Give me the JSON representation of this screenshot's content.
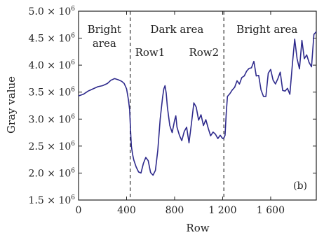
{
  "chart_data": {
    "type": "line",
    "xlabel": "Row",
    "ylabel": "Gray value",
    "panel_tag": "(b)",
    "xlim": [
      0,
      1980
    ],
    "ylim": [
      1500000,
      5000000
    ],
    "x_ticks": [
      {
        "value": 0,
        "label": "0"
      },
      {
        "value": 400,
        "label": "400"
      },
      {
        "value": 800,
        "label": "800"
      },
      {
        "value": 1200,
        "label": "1 200"
      },
      {
        "value": 1600,
        "label": "1 600"
      }
    ],
    "y_ticks": [
      {
        "value": 1500000,
        "mantissa": "1.5",
        "times": "×",
        "base": "10",
        "exp": "6"
      },
      {
        "value": 2000000,
        "mantissa": "2.0",
        "times": "×",
        "base": "10",
        "exp": "6"
      },
      {
        "value": 2500000,
        "mantissa": "2.5",
        "times": "×",
        "base": "10",
        "exp": "6"
      },
      {
        "value": 3000000,
        "mantissa": "3.0",
        "times": "×",
        "base": "10",
        "exp": "6"
      },
      {
        "value": 3500000,
        "mantissa": "3.5",
        "times": "×",
        "base": "10",
        "exp": "6"
      },
      {
        "value": 4000000,
        "mantissa": "4.0",
        "times": "×",
        "base": "10",
        "exp": "6"
      },
      {
        "value": 4500000,
        "mantissa": "4.5",
        "times": "×",
        "base": "10",
        "exp": "6"
      },
      {
        "value": 5000000,
        "mantissa": "5.0",
        "times": "×",
        "base": "10",
        "exp": "6"
      }
    ],
    "boundaries": [
      {
        "x": 430,
        "label": "Row1"
      },
      {
        "x": 1210,
        "label": "Row2"
      }
    ],
    "region_labels": [
      {
        "text": "Bright\narea",
        "x": 215
      },
      {
        "text": "Dark area",
        "x": 820
      },
      {
        "text": "Bright area",
        "x": 1570
      }
    ],
    "series": [
      {
        "color": "#2e2a8c",
        "x": [
          0,
          40,
          80,
          120,
          160,
          200,
          240,
          270,
          300,
          330,
          360,
          380,
          400,
          415,
          425,
          430,
          435,
          440,
          450,
          460,
          480,
          500,
          520,
          540,
          560,
          580,
          600,
          620,
          640,
          660,
          680,
          700,
          710,
          720,
          730,
          740,
          760,
          780,
          800,
          810,
          820,
          840,
          860,
          880,
          900,
          920,
          940,
          960,
          980,
          1000,
          1020,
          1040,
          1060,
          1080,
          1100,
          1120,
          1140,
          1160,
          1180,
          1200,
          1210,
          1220,
          1230,
          1240,
          1260,
          1280,
          1300,
          1320,
          1340,
          1360,
          1380,
          1400,
          1420,
          1440,
          1460,
          1480,
          1500,
          1520,
          1540,
          1560,
          1580,
          1600,
          1620,
          1640,
          1660,
          1680,
          1700,
          1720,
          1740,
          1760,
          1780,
          1800,
          1820,
          1840,
          1860,
          1880,
          1900,
          1920,
          1940,
          1960,
          1980
        ],
        "y": [
          3430000,
          3460000,
          3520000,
          3560000,
          3600000,
          3620000,
          3660000,
          3720000,
          3750000,
          3730000,
          3700000,
          3660000,
          3560000,
          3360000,
          3180000,
          2950000,
          2700000,
          2500000,
          2350000,
          2240000,
          2110000,
          2020000,
          2000000,
          2180000,
          2290000,
          2230000,
          2010000,
          1960000,
          2050000,
          2420000,
          3000000,
          3400000,
          3560000,
          3620000,
          3480000,
          3220000,
          2880000,
          2750000,
          2980000,
          3060000,
          2850000,
          2700000,
          2600000,
          2770000,
          2850000,
          2560000,
          2910000,
          3300000,
          3220000,
          2980000,
          3080000,
          2880000,
          2990000,
          2830000,
          2690000,
          2760000,
          2720000,
          2640000,
          2700000,
          2640000,
          2650000,
          2700000,
          3110000,
          3420000,
          3470000,
          3540000,
          3590000,
          3710000,
          3650000,
          3770000,
          3800000,
          3890000,
          3940000,
          3950000,
          4070000,
          3800000,
          3810000,
          3540000,
          3420000,
          3420000,
          3850000,
          3920000,
          3720000,
          3650000,
          3750000,
          3870000,
          3530000,
          3520000,
          3570000,
          3460000,
          4000000,
          4480000,
          4120000,
          3930000,
          4460000,
          4120000,
          4190000,
          4050000,
          3970000,
          4570000,
          4620000
        ]
      }
    ]
  }
}
